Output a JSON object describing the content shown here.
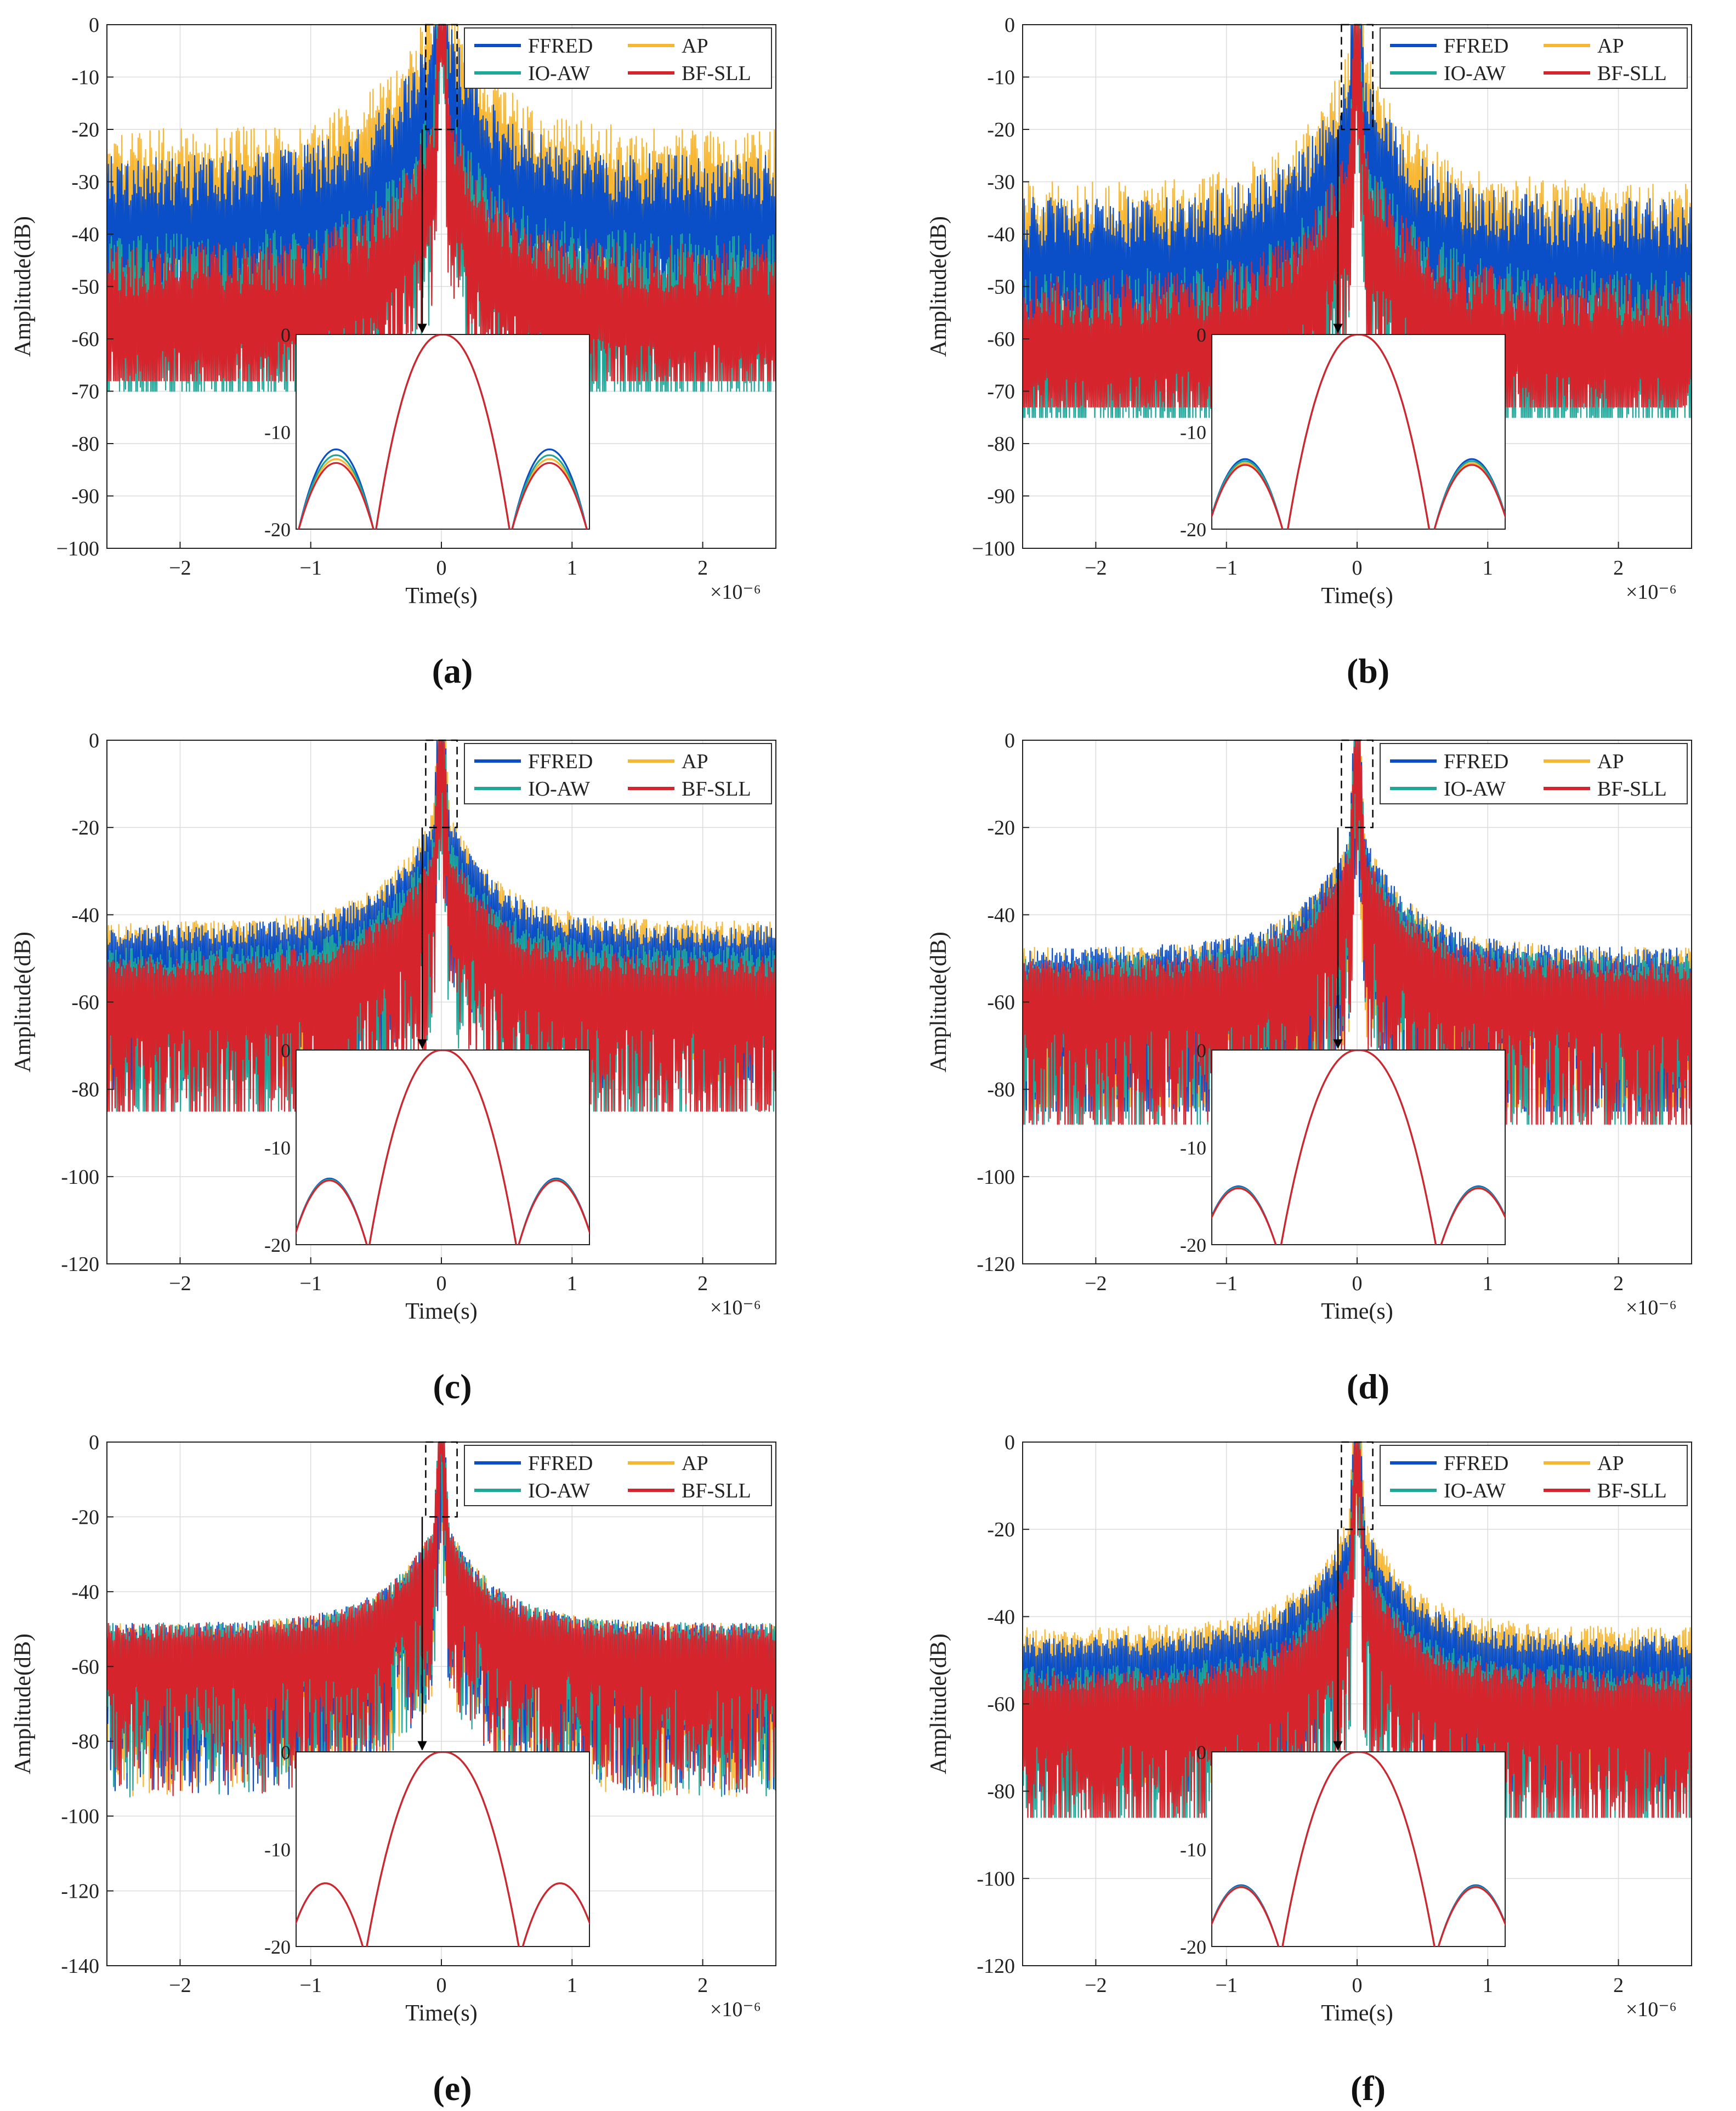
{
  "figure": {
    "panel_labels": [
      "(a)",
      "(b)",
      "(c)",
      "(d)",
      "(e)",
      "(f)"
    ]
  },
  "colors": {
    "FFRED": "#0a4fc8",
    "IO-AW": "#1ea799",
    "AP": "#f7b733",
    "BF-SLL": "#d6242c"
  },
  "chart_data": [
    {
      "panel": "(a)",
      "type": "line",
      "xlabel": "Time(s)",
      "ylabel": "Amplitude(dB)",
      "x_exponent": "×10⁻⁶",
      "xlim": [
        -2.56,
        2.56
      ],
      "ylim": [
        -100,
        0
      ],
      "xticks": [
        -2,
        -1,
        0,
        1,
        2
      ],
      "xtick_labels": [
        "−2",
        "−1",
        "0",
        "1",
        "2"
      ],
      "yticks": [
        0,
        -10,
        -20,
        -30,
        -40,
        -50,
        -60,
        -70,
        -80,
        -90,
        -100
      ],
      "ytick_labels": [
        "0",
        "-10",
        "-20",
        "-30",
        "-40",
        "-50",
        "-60",
        "-70",
        "-80",
        "-90",
        "−100"
      ],
      "grid": true,
      "legend": [
        "FFRED",
        "AP",
        "IO-AW",
        "BF-SLL"
      ],
      "legend_position": "top-right",
      "series": [
        {
          "name": "FFRED",
          "sidelobe_level_db": -30,
          "floor_db": -55
        },
        {
          "name": "AP",
          "sidelobe_level_db": -25,
          "floor_db": -50
        },
        {
          "name": "IO-AW",
          "sidelobe_level_db": -45,
          "floor_db": -70
        },
        {
          "name": "BF-SLL",
          "sidelobe_level_db": -47,
          "floor_db": -68
        }
      ],
      "zoom_box": {
        "x": [
          -0.12,
          0.12
        ],
        "y": [
          -20,
          0
        ]
      },
      "inset": {
        "xlim": [
          -1.1,
          1.1
        ],
        "ylim": [
          -20,
          0
        ],
        "yticks": [
          0,
          -10,
          -20
        ],
        "ytick_labels": [
          "0",
          "-10",
          "-20"
        ],
        "mainlobe_halfwidth": 0.5,
        "first_sidelobe_center": 0.8,
        "first_sidelobe_db": {
          "FFRED": -11.8,
          "AP": -12.8,
          "IO-AW": -12.4,
          "BF-SLL": -13.2
        }
      }
    },
    {
      "panel": "(b)",
      "type": "line",
      "xlabel": "Time(s)",
      "ylabel": "Amplitude(dB)",
      "x_exponent": "×10⁻⁶",
      "xlim": [
        -2.56,
        2.56
      ],
      "ylim": [
        -100,
        0
      ],
      "xticks": [
        -2,
        -1,
        0,
        1,
        2
      ],
      "xtick_labels": [
        "−2",
        "−1",
        "0",
        "1",
        "2"
      ],
      "yticks": [
        0,
        -10,
        -20,
        -30,
        -40,
        -50,
        -60,
        -70,
        -80,
        -90,
        -100
      ],
      "ytick_labels": [
        "0",
        "-10",
        "-20",
        "-30",
        "-40",
        "-50",
        "-60",
        "-70",
        "-80",
        "-90",
        "−100"
      ],
      "grid": true,
      "legend": [
        "FFRED",
        "AP",
        "IO-AW",
        "BF-SLL"
      ],
      "legend_position": "top-right",
      "series": [
        {
          "name": "FFRED",
          "sidelobe_level_db": -38,
          "floor_db": -60
        },
        {
          "name": "AP",
          "sidelobe_level_db": -35,
          "floor_db": -58
        },
        {
          "name": "IO-AW",
          "sidelobe_level_db": -52,
          "floor_db": -75
        },
        {
          "name": "BF-SLL",
          "sidelobe_level_db": -53,
          "floor_db": -73
        }
      ],
      "zoom_box": {
        "x": [
          -0.12,
          0.12
        ],
        "y": [
          -20,
          0
        ]
      },
      "inset": {
        "xlim": [
          -1.1,
          1.1
        ],
        "ylim": [
          -20,
          0
        ],
        "yticks": [
          0,
          -10,
          -20
        ],
        "ytick_labels": [
          "0",
          "-10",
          "-20"
        ],
        "mainlobe_halfwidth": 0.53,
        "first_sidelobe_center": 0.85,
        "first_sidelobe_db": {
          "FFRED": -12.8,
          "AP": -13.2,
          "IO-AW": -13.0,
          "BF-SLL": -13.4
        }
      }
    },
    {
      "panel": "(c)",
      "type": "line",
      "xlabel": "Time(s)",
      "ylabel": "Amplitude(dB)",
      "x_exponent": "×10⁻⁶",
      "xlim": [
        -2.56,
        2.56
      ],
      "ylim": [
        -120,
        0
      ],
      "xticks": [
        -2,
        -1,
        0,
        1,
        2
      ],
      "xtick_labels": [
        "−2",
        "−1",
        "0",
        "1",
        "2"
      ],
      "yticks": [
        0,
        -20,
        -40,
        -60,
        -80,
        -100,
        -120
      ],
      "ytick_labels": [
        "0",
        "-20",
        "-40",
        "-60",
        "-80",
        "-100",
        "-120"
      ],
      "grid": true,
      "legend": [
        "FFRED",
        "AP",
        "IO-AW",
        "BF-SLL"
      ],
      "legend_position": "top-right",
      "series": [
        {
          "name": "FFRED",
          "sidelobe_level_db": -45,
          "floor_db": -80
        },
        {
          "name": "AP",
          "sidelobe_level_db": -44,
          "floor_db": -78
        },
        {
          "name": "IO-AW",
          "sidelobe_level_db": -50,
          "floor_db": -85
        },
        {
          "name": "BF-SLL",
          "sidelobe_level_db": -52,
          "floor_db": -85
        }
      ],
      "zoom_box": {
        "x": [
          -0.12,
          0.12
        ],
        "y": [
          -20,
          0
        ]
      },
      "inset": {
        "xlim": [
          -1.1,
          1.1
        ],
        "ylim": [
          -20,
          0
        ],
        "yticks": [
          0,
          -10,
          -20
        ],
        "ytick_labels": [
          "0",
          "-10",
          "-20"
        ],
        "mainlobe_halfwidth": 0.55,
        "first_sidelobe_center": 0.85,
        "first_sidelobe_db": {
          "FFRED": -13.2,
          "AP": -13.3,
          "IO-AW": -13.3,
          "BF-SLL": -13.4
        }
      }
    },
    {
      "panel": "(d)",
      "type": "line",
      "xlabel": "Time(s)",
      "ylabel": "Amplitude(dB)",
      "x_exponent": "×10⁻⁶",
      "xlim": [
        -2.56,
        2.56
      ],
      "ylim": [
        -120,
        0
      ],
      "xticks": [
        -2,
        -1,
        0,
        1,
        2
      ],
      "xtick_labels": [
        "−2",
        "−1",
        "0",
        "1",
        "2"
      ],
      "yticks": [
        0,
        -20,
        -40,
        -60,
        -80,
        -100,
        -120
      ],
      "ytick_labels": [
        "0",
        "-20",
        "-40",
        "-60",
        "-80",
        "-100",
        "-120"
      ],
      "grid": true,
      "legend": [
        "FFRED",
        "AP",
        "IO-AW",
        "BF-SLL"
      ],
      "legend_position": "top-right",
      "series": [
        {
          "name": "FFRED",
          "sidelobe_level_db": -50,
          "floor_db": -85
        },
        {
          "name": "AP",
          "sidelobe_level_db": -50,
          "floor_db": -84
        },
        {
          "name": "IO-AW",
          "sidelobe_level_db": -52,
          "floor_db": -88
        },
        {
          "name": "BF-SLL",
          "sidelobe_level_db": -53,
          "floor_db": -88
        }
      ],
      "zoom_box": {
        "x": [
          -0.12,
          0.12
        ],
        "y": [
          -20,
          0
        ]
      },
      "inset": {
        "xlim": [
          -1.1,
          1.1
        ],
        "ylim": [
          -20,
          0
        ],
        "yticks": [
          0,
          -10,
          -20
        ],
        "ytick_labels": [
          "0",
          "-10",
          "-20"
        ],
        "mainlobe_halfwidth": 0.58,
        "first_sidelobe_center": 0.9,
        "first_sidelobe_db": {
          "FFRED": -14.0,
          "AP": -14.1,
          "IO-AW": -14.1,
          "BF-SLL": -14.2
        }
      }
    },
    {
      "panel": "(e)",
      "type": "line",
      "xlabel": "Time(s)",
      "ylabel": "Amplitude(dB)",
      "x_exponent": "×10⁻⁶",
      "xlim": [
        -2.56,
        2.56
      ],
      "ylim": [
        -140,
        0
      ],
      "xticks": [
        -2,
        -1,
        0,
        1,
        2
      ],
      "xtick_labels": [
        "−2",
        "−1",
        "0",
        "1",
        "2"
      ],
      "yticks": [
        0,
        -20,
        -40,
        -60,
        -80,
        -100,
        -120,
        -140
      ],
      "ytick_labels": [
        "0",
        "-20",
        "-40",
        "-60",
        "-80",
        "-100",
        "-120",
        "-140"
      ],
      "grid": true,
      "legend": [
        "FFRED",
        "AP",
        "IO-AW",
        "BF-SLL"
      ],
      "legend_position": "top-right",
      "series": [
        {
          "name": "FFRED",
          "sidelobe_level_db": -51,
          "floor_db": -95
        },
        {
          "name": "AP",
          "sidelobe_level_db": -51,
          "floor_db": -95
        },
        {
          "name": "IO-AW",
          "sidelobe_level_db": -51,
          "floor_db": -96
        },
        {
          "name": "BF-SLL",
          "sidelobe_level_db": -51,
          "floor_db": -96
        }
      ],
      "zoom_box": {
        "x": [
          -0.12,
          0.12
        ],
        "y": [
          -20,
          0
        ]
      },
      "inset": {
        "xlim": [
          -1.1,
          1.1
        ],
        "ylim": [
          -20,
          0
        ],
        "yticks": [
          0,
          -10,
          -20
        ],
        "ytick_labels": [
          "0",
          "-10",
          "-20"
        ],
        "mainlobe_halfwidth": 0.57,
        "first_sidelobe_center": 0.88,
        "first_sidelobe_db": {
          "FFRED": -13.5,
          "AP": -13.5,
          "IO-AW": -13.5,
          "BF-SLL": -13.5
        }
      }
    },
    {
      "panel": "(f)",
      "type": "line",
      "xlabel": "Time(s)",
      "ylabel": "Amplitude(dB)",
      "x_exponent": "×10⁻⁶",
      "xlim": [
        -2.56,
        2.56
      ],
      "ylim": [
        -120,
        0
      ],
      "xticks": [
        -2,
        -1,
        0,
        1,
        2
      ],
      "xtick_labels": [
        "−2",
        "−1",
        "0",
        "1",
        "2"
      ],
      "yticks": [
        0,
        -20,
        -40,
        -60,
        -80,
        -100,
        -120
      ],
      "ytick_labels": [
        "0",
        "-20",
        "-40",
        "-60",
        "-80",
        "-100",
        "-120"
      ],
      "grid": true,
      "legend": [
        "FFRED",
        "AP",
        "IO-AW",
        "BF-SLL"
      ],
      "legend_position": "top-right",
      "series": [
        {
          "name": "FFRED",
          "sidelobe_level_db": -47,
          "floor_db": -80
        },
        {
          "name": "AP",
          "sidelobe_level_db": -45,
          "floor_db": -78
        },
        {
          "name": "IO-AW",
          "sidelobe_level_db": -54,
          "floor_db": -86
        },
        {
          "name": "BF-SLL",
          "sidelobe_level_db": -55,
          "floor_db": -86
        }
      ],
      "zoom_box": {
        "x": [
          -0.12,
          0.12
        ],
        "y": [
          -20,
          0
        ]
      },
      "inset": {
        "xlim": [
          -1.1,
          1.1
        ],
        "ylim": [
          -20,
          0
        ],
        "yticks": [
          0,
          -10,
          -20
        ],
        "ytick_labels": [
          "0",
          "-10",
          "-20"
        ],
        "mainlobe_halfwidth": 0.57,
        "first_sidelobe_center": 0.88,
        "first_sidelobe_db": {
          "FFRED": -13.7,
          "AP": -13.8,
          "IO-AW": -13.8,
          "BF-SLL": -13.9
        }
      }
    }
  ]
}
